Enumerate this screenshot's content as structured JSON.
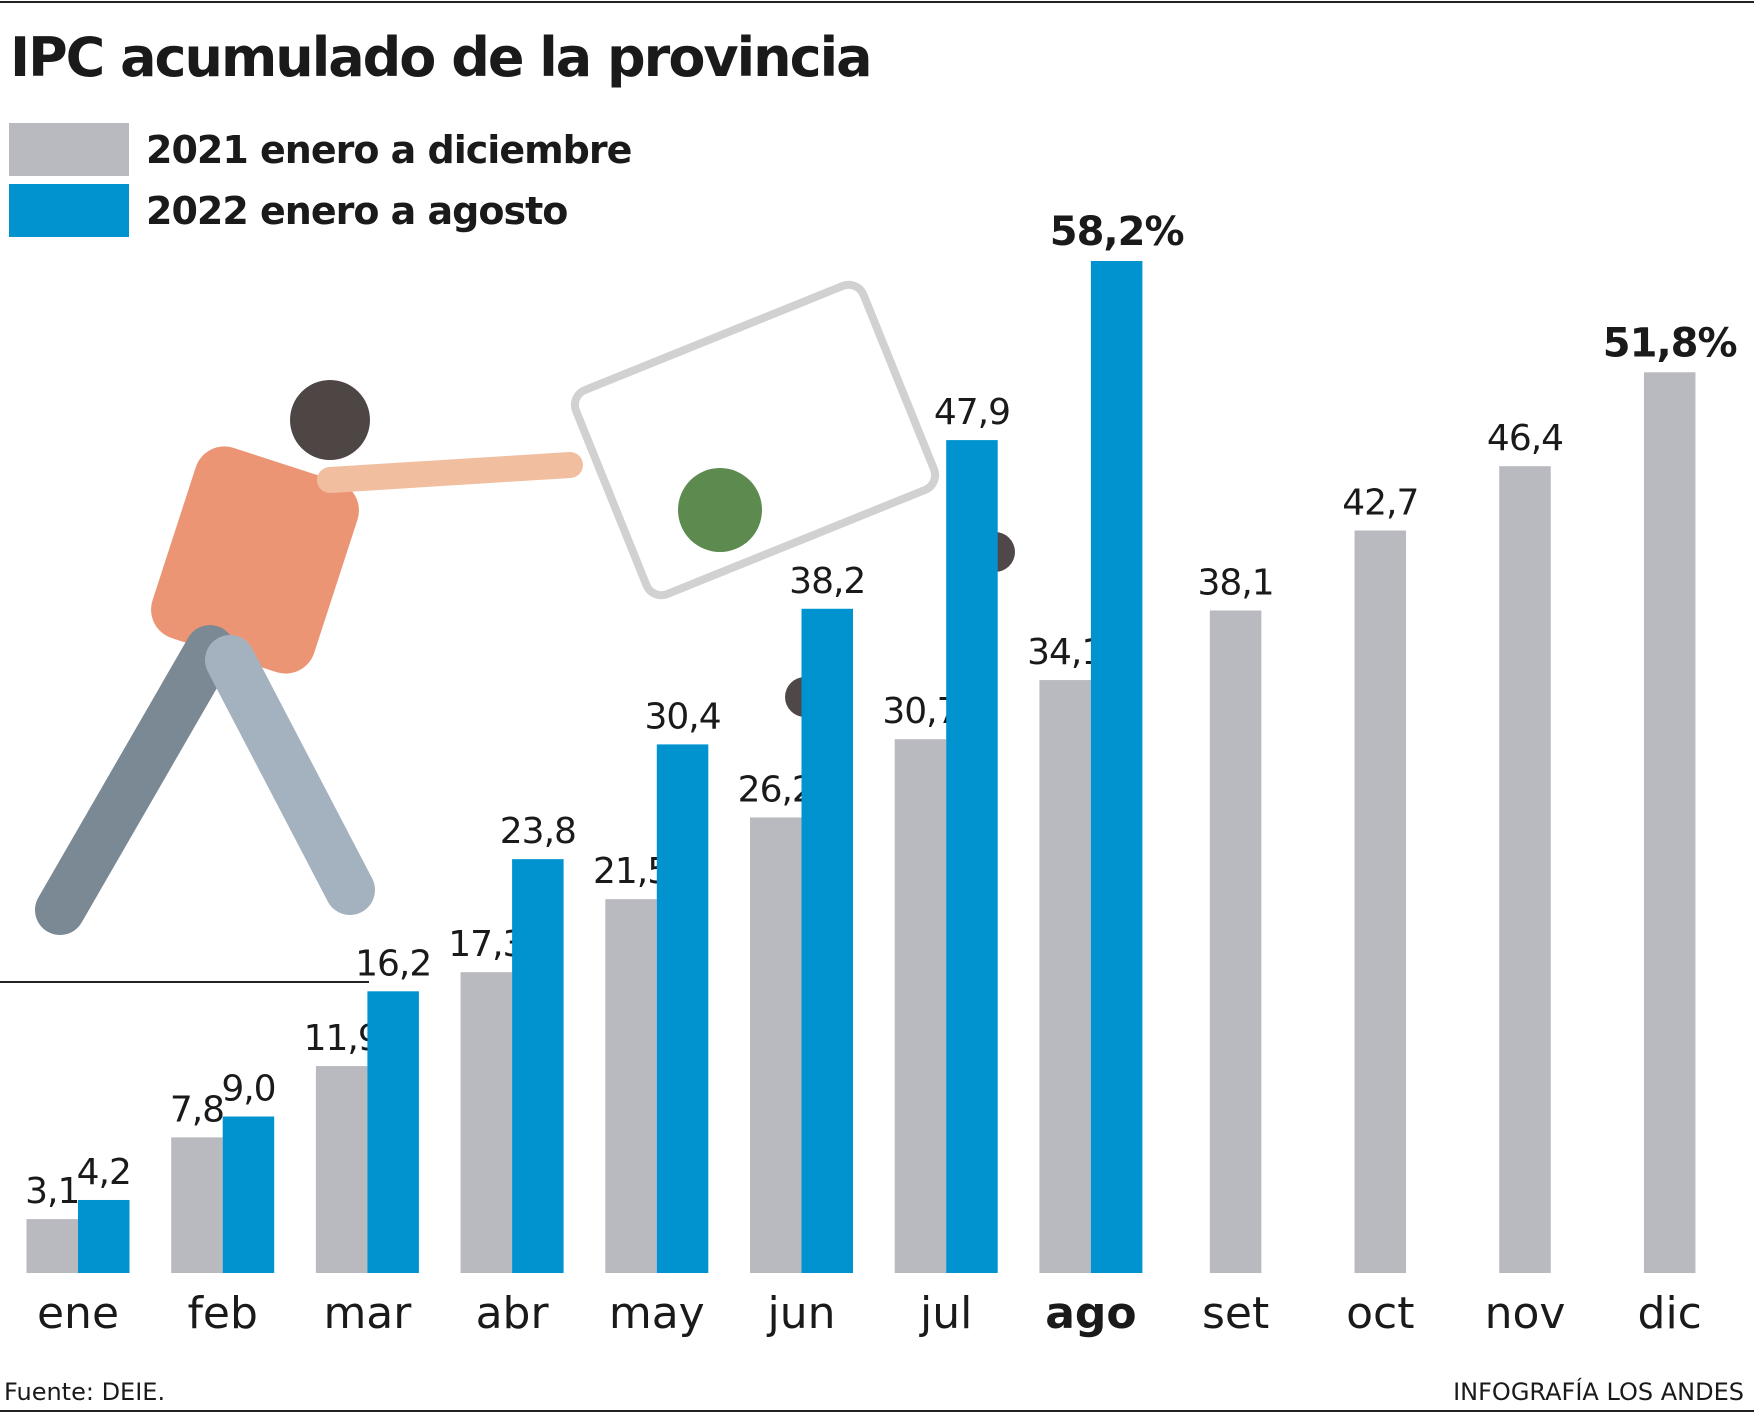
{
  "chart_data": {
    "type": "bar",
    "title": "IPC acumulado de la provincia",
    "categories": [
      "ene",
      "feb",
      "mar",
      "abr",
      "may",
      "jun",
      "jul",
      "ago",
      "set",
      "oct",
      "nov",
      "dic"
    ],
    "series": [
      {
        "name": "2021 enero a diciembre",
        "color": "#b9b9c0",
        "values": [
          3.1,
          7.8,
          11.9,
          17.3,
          21.5,
          26.2,
          30.7,
          34.1,
          38.1,
          42.7,
          46.4,
          51.8
        ],
        "value_labels": [
          "3,1",
          "7,8",
          "11,9",
          "17,3",
          "21,5",
          "26,2",
          "30,7",
          "34,1",
          "38,1",
          "42,7",
          "46,4",
          "51,8%"
        ]
      },
      {
        "name": "2022 enero a agosto",
        "color": "#0093d0",
        "values": [
          4.2,
          9.0,
          16.2,
          23.8,
          30.4,
          38.2,
          47.9,
          58.2,
          null,
          null,
          null,
          null
        ],
        "value_labels": [
          "4,2",
          "9,0",
          "16,2",
          "23,8",
          "30,4",
          "38,2",
          "47,9",
          "58,2%",
          null,
          null,
          null,
          null
        ]
      }
    ],
    "source": "Fuente: DEIE.",
    "credit": "INFOGRAFÍA LOS ANDES"
  }
}
